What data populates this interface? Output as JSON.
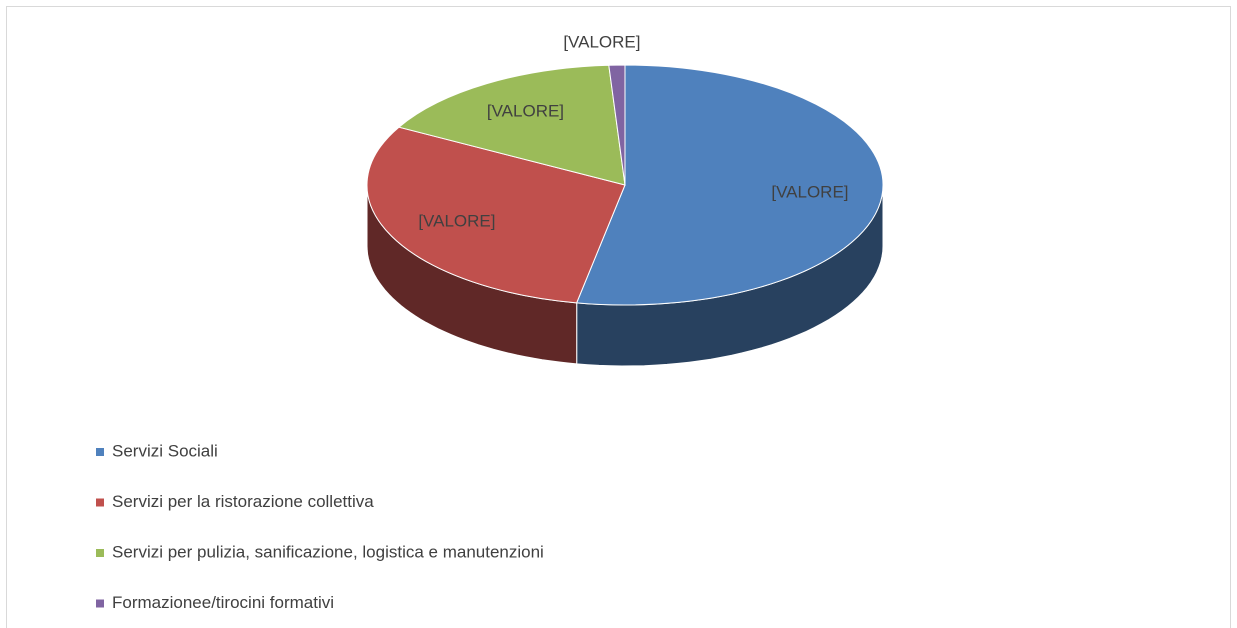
{
  "chart_data": {
    "type": "pie",
    "categories": [
      "Servizi Sociali",
      "Servizi per la ristorazione collettiva",
      "Servizi per pulizia, sanificazione, logistica e manutenzioni",
      "Formazionee/tirocini formativi"
    ],
    "values": [
      53,
      30,
      16,
      1
    ],
    "value_labels": [
      "[VALORE]",
      "[VALORE]",
      "[VALORE]",
      "[VALORE]"
    ],
    "colors": [
      "#4f81bd",
      "#c0504d",
      "#9bbb59",
      "#8064a2"
    ],
    "legend": "bottom-left"
  }
}
